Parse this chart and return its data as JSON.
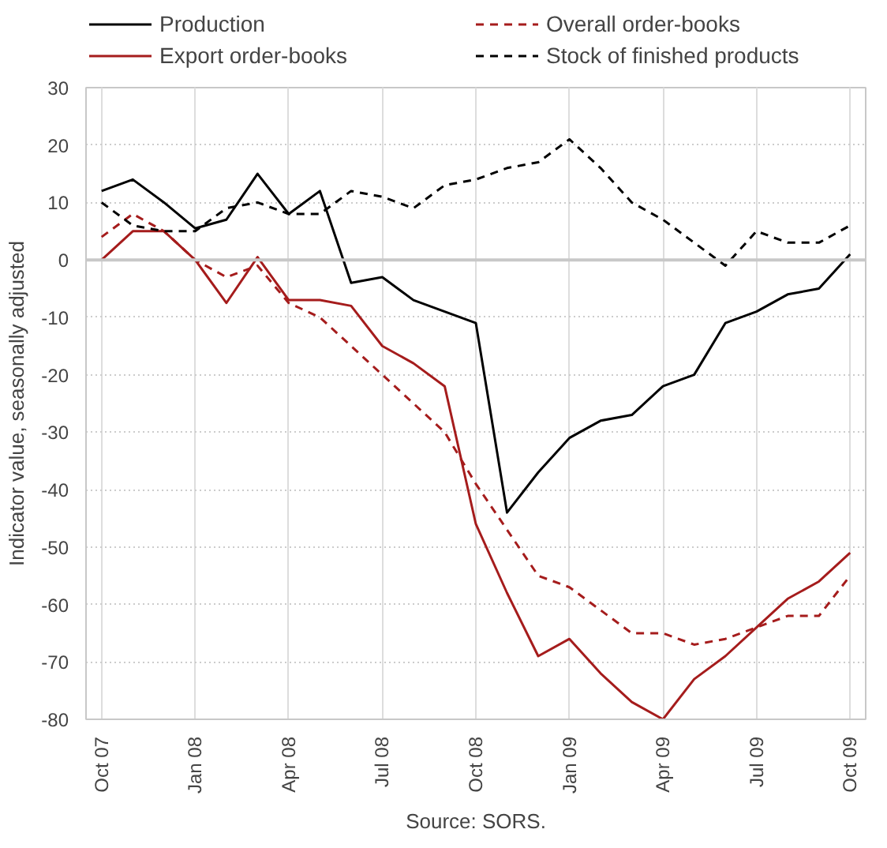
{
  "chart_data": {
    "type": "line",
    "ylabel": "Indicator value, seasonally adjusted",
    "annotations": [
      "Source: SORS."
    ],
    "categories": [
      "Oct 07",
      null,
      null,
      "Jan 08",
      null,
      null,
      "Apr 08",
      null,
      null,
      "Jul 08",
      null,
      null,
      "Oct 08",
      null,
      null,
      "Jan 09",
      null,
      null,
      "Apr 09",
      null,
      null,
      "Jul 09",
      null,
      null,
      "Oct 09"
    ],
    "series": [
      {
        "name": "Production",
        "color": "#000000",
        "line_style": "solid",
        "values": [
          12,
          14,
          10,
          5.5,
          7,
          15,
          8,
          12,
          -4,
          -3,
          -7,
          -9,
          -11,
          -44,
          -37,
          -31,
          -28,
          -27,
          -22,
          -20,
          -11,
          -9,
          -6,
          -5,
          1
        ]
      },
      {
        "name": "Export order-books",
        "color": "#a51c1c",
        "line_style": "solid",
        "values": [
          0,
          5,
          5,
          0,
          -7.5,
          0.5,
          -7,
          -7,
          -8,
          -15,
          -18,
          -22,
          -46,
          -58,
          -69,
          -66,
          -72,
          -77,
          -80,
          -73,
          -69,
          -64,
          -59,
          -56,
          -51
        ]
      },
      {
        "name": "Overall order-books",
        "color": "#a51c1c",
        "line_style": "dashed",
        "values": [
          4,
          8,
          5,
          0,
          -3,
          -1,
          -7.5,
          -10,
          -15,
          -20,
          -25,
          -30,
          -39,
          -47,
          -55,
          -57,
          -61,
          -65,
          -65,
          -67,
          -66,
          -64,
          -62,
          -62,
          -55
        ]
      },
      {
        "name": "Stock of finished products",
        "color": "#000000",
        "line_style": "dashed",
        "values": [
          10,
          6,
          5,
          5,
          9,
          10,
          8,
          8,
          12,
          11,
          9,
          13,
          14,
          16,
          17,
          21,
          16,
          10,
          7,
          3,
          -1,
          5,
          3,
          3,
          6
        ]
      }
    ],
    "ylim": [
      -80,
      30
    ],
    "yticks": [
      -80,
      -70,
      -60,
      -50,
      -40,
      -30,
      -20,
      -10,
      0,
      10,
      20,
      30
    ],
    "grid": true,
    "legend": "top",
    "marker": "none"
  }
}
